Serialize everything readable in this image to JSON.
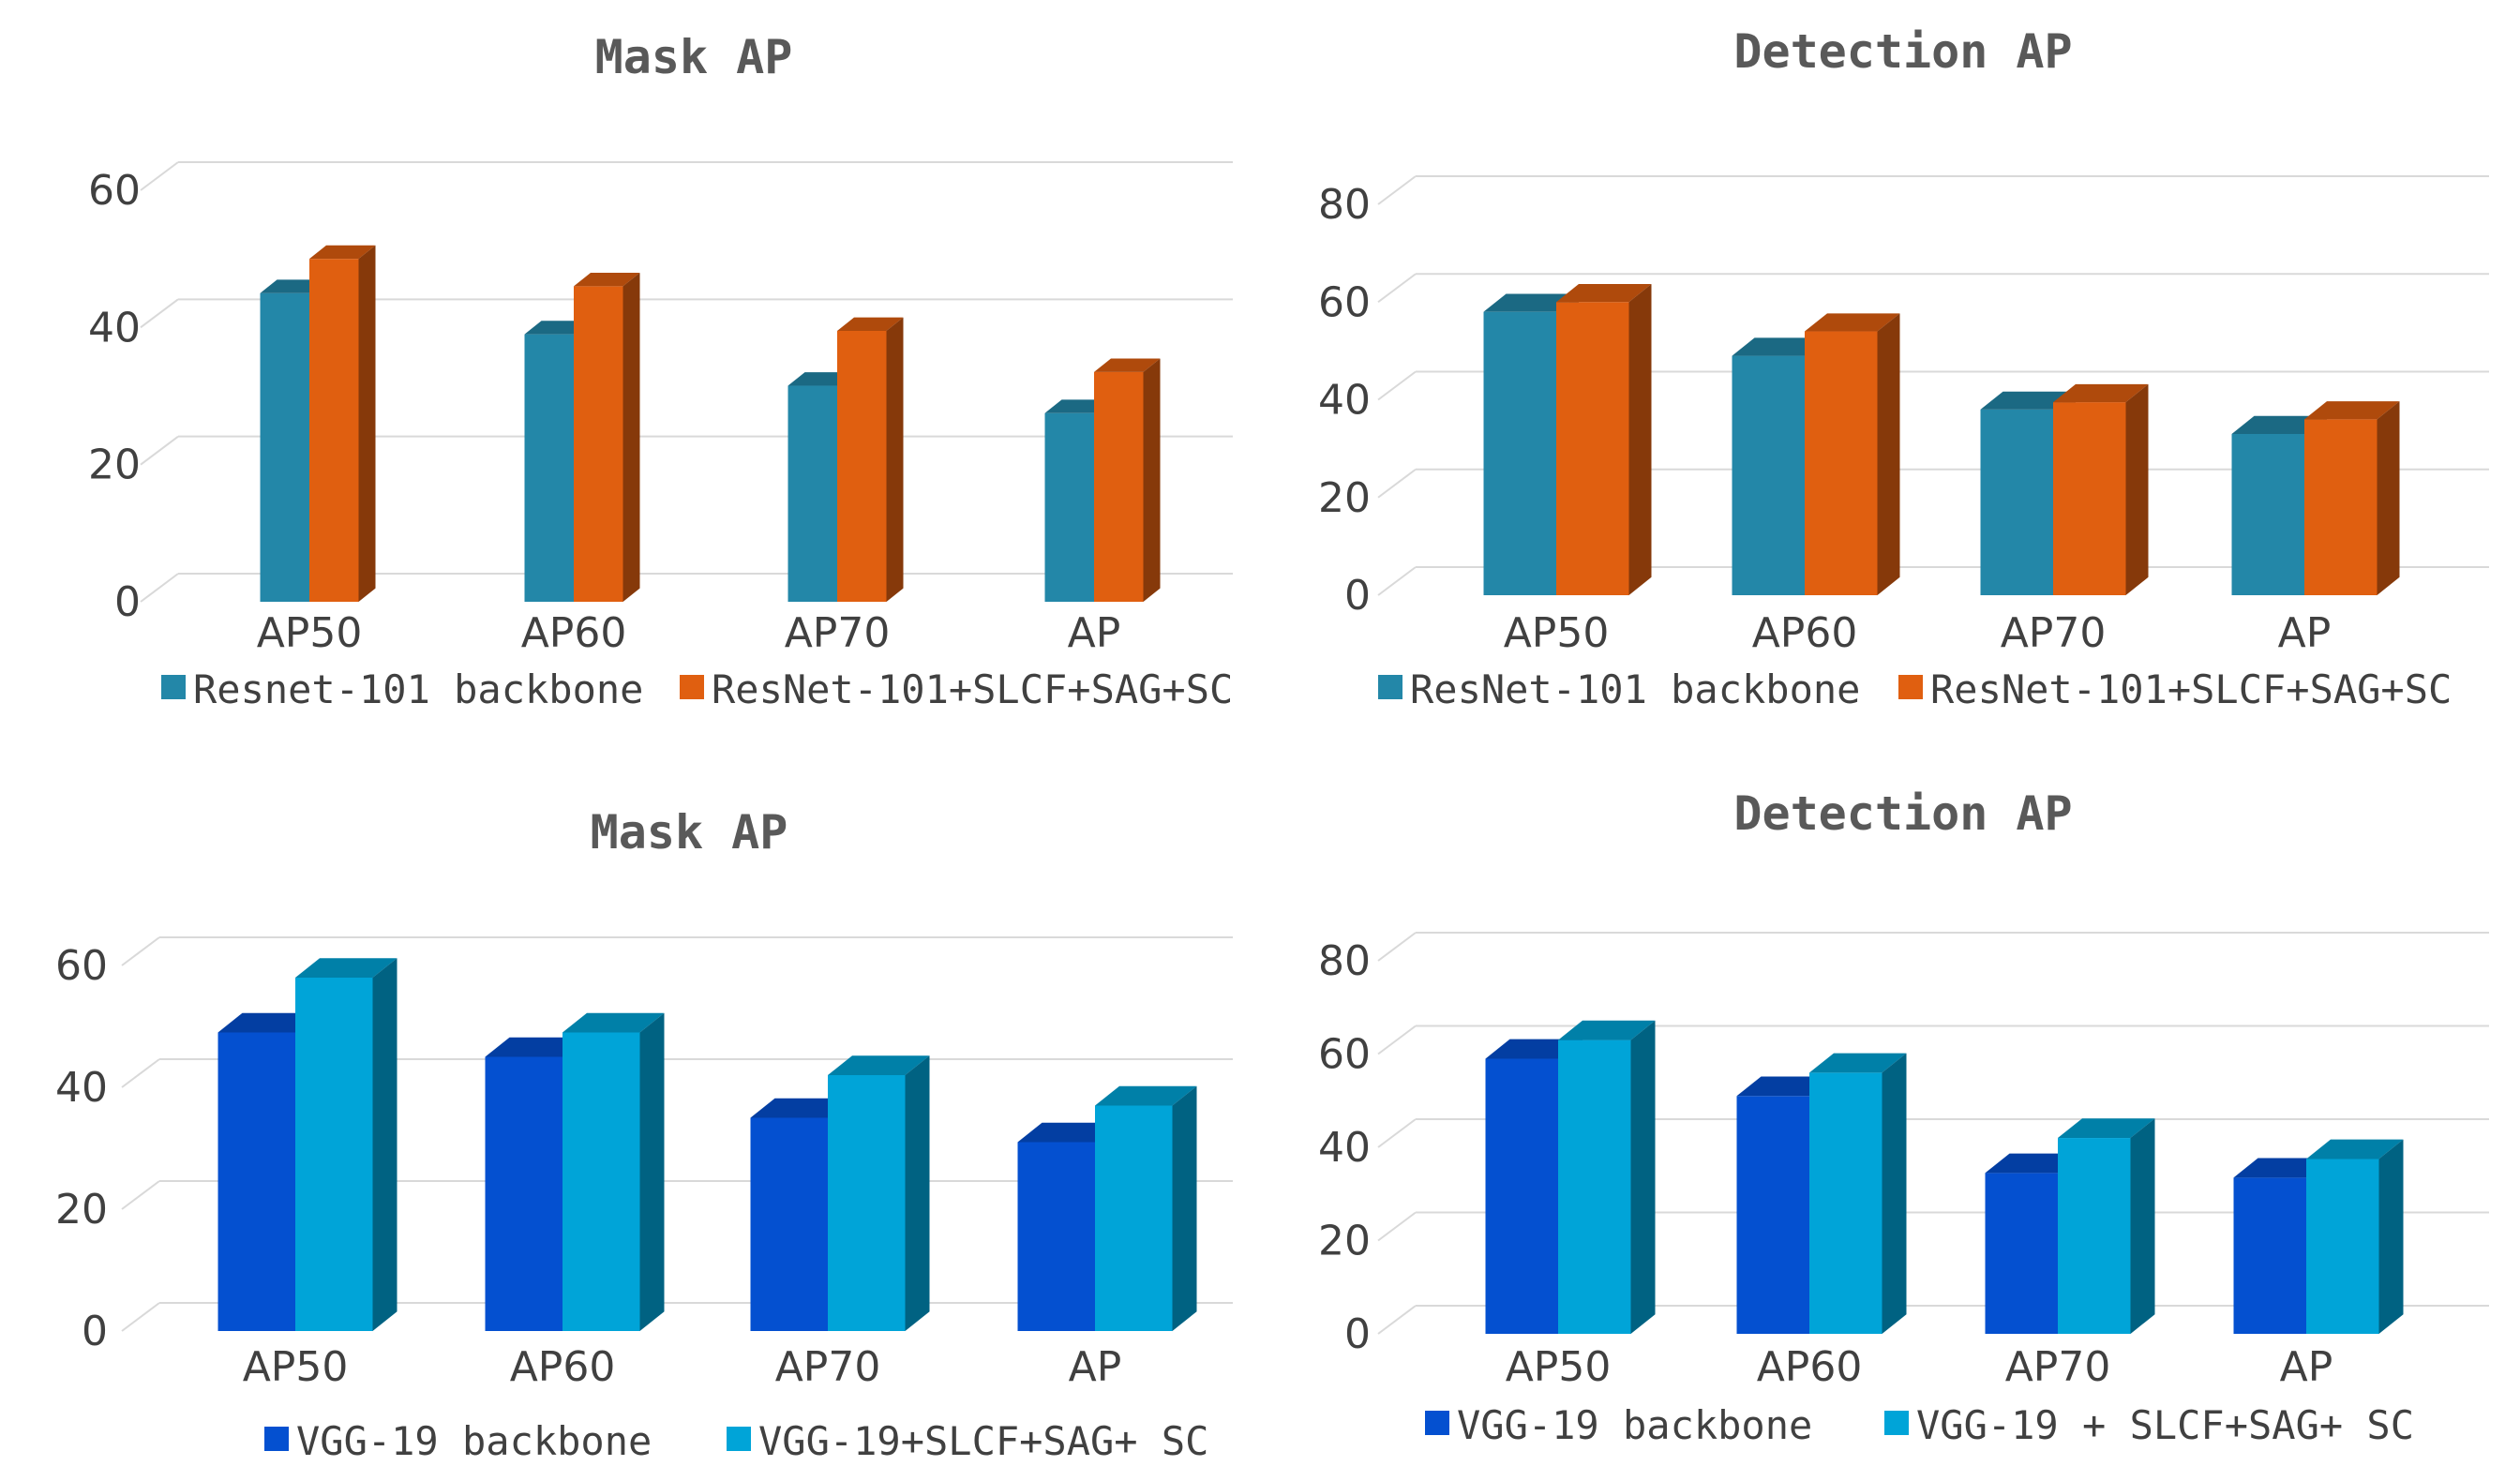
{
  "chart_data": [
    {
      "type": "bar",
      "title": "Mask AP",
      "categories": [
        "AP50",
        "AP60",
        "AP70",
        "AP"
      ],
      "yticks": [
        "0",
        "20",
        "40",
        "60"
      ],
      "ylim": [
        0,
        60
      ],
      "series": [
        {
          "name": "Resnet-101 backbone",
          "color": "#2387a8",
          "values": [
            45,
            39,
            31.5,
            27.5
          ]
        },
        {
          "name": "ResNet-101+SLCF+SAG+SC",
          "color": "#e05f10",
          "values": [
            50,
            46,
            39.5,
            33.5
          ]
        }
      ]
    },
    {
      "type": "bar",
      "title": "Detection AP",
      "categories": [
        "AP50",
        "AP60",
        "AP70",
        "AP"
      ],
      "yticks": [
        "0",
        "20",
        "40",
        "60",
        "80"
      ],
      "ylim": [
        0,
        80
      ],
      "series": [
        {
          "name": "ResNet-101 backbone",
          "color": "#2387a8",
          "values": [
            58,
            49,
            38,
            33
          ]
        },
        {
          "name": "ResNet-101+SLCF+SAG+SC",
          "color": "#e05f10",
          "values": [
            60,
            54,
            39.5,
            36
          ]
        }
      ]
    },
    {
      "type": "bar",
      "title": "Mask AP",
      "categories": [
        "AP50",
        "AP60",
        "AP70",
        "AP"
      ],
      "yticks": [
        "0",
        "20",
        "40",
        "60"
      ],
      "ylim": [
        0,
        60
      ],
      "series": [
        {
          "name": "VGG-19 backbone",
          "color": "#0450d0",
          "values": [
            49,
            45,
            35,
            31
          ]
        },
        {
          "name": "VGG-19+SLCF+SAG+ SC",
          "color": "#00a4d8",
          "values": [
            58,
            49,
            42,
            37
          ]
        }
      ]
    },
    {
      "type": "bar",
      "title": "Detection AP",
      "categories": [
        "AP50",
        "AP60",
        "AP70",
        "AP"
      ],
      "yticks": [
        "0",
        "20",
        "40",
        "60",
        "80"
      ],
      "ylim": [
        0,
        80
      ],
      "series": [
        {
          "name": "VGG-19 backbone",
          "color": "#0450d0",
          "values": [
            59,
            51,
            34.5,
            33.5
          ]
        },
        {
          "name": "VGG-19 + SLCF+SAG+ SC",
          "color": "#00a4d8",
          "values": [
            63,
            56,
            42,
            37.5
          ]
        }
      ]
    }
  ]
}
